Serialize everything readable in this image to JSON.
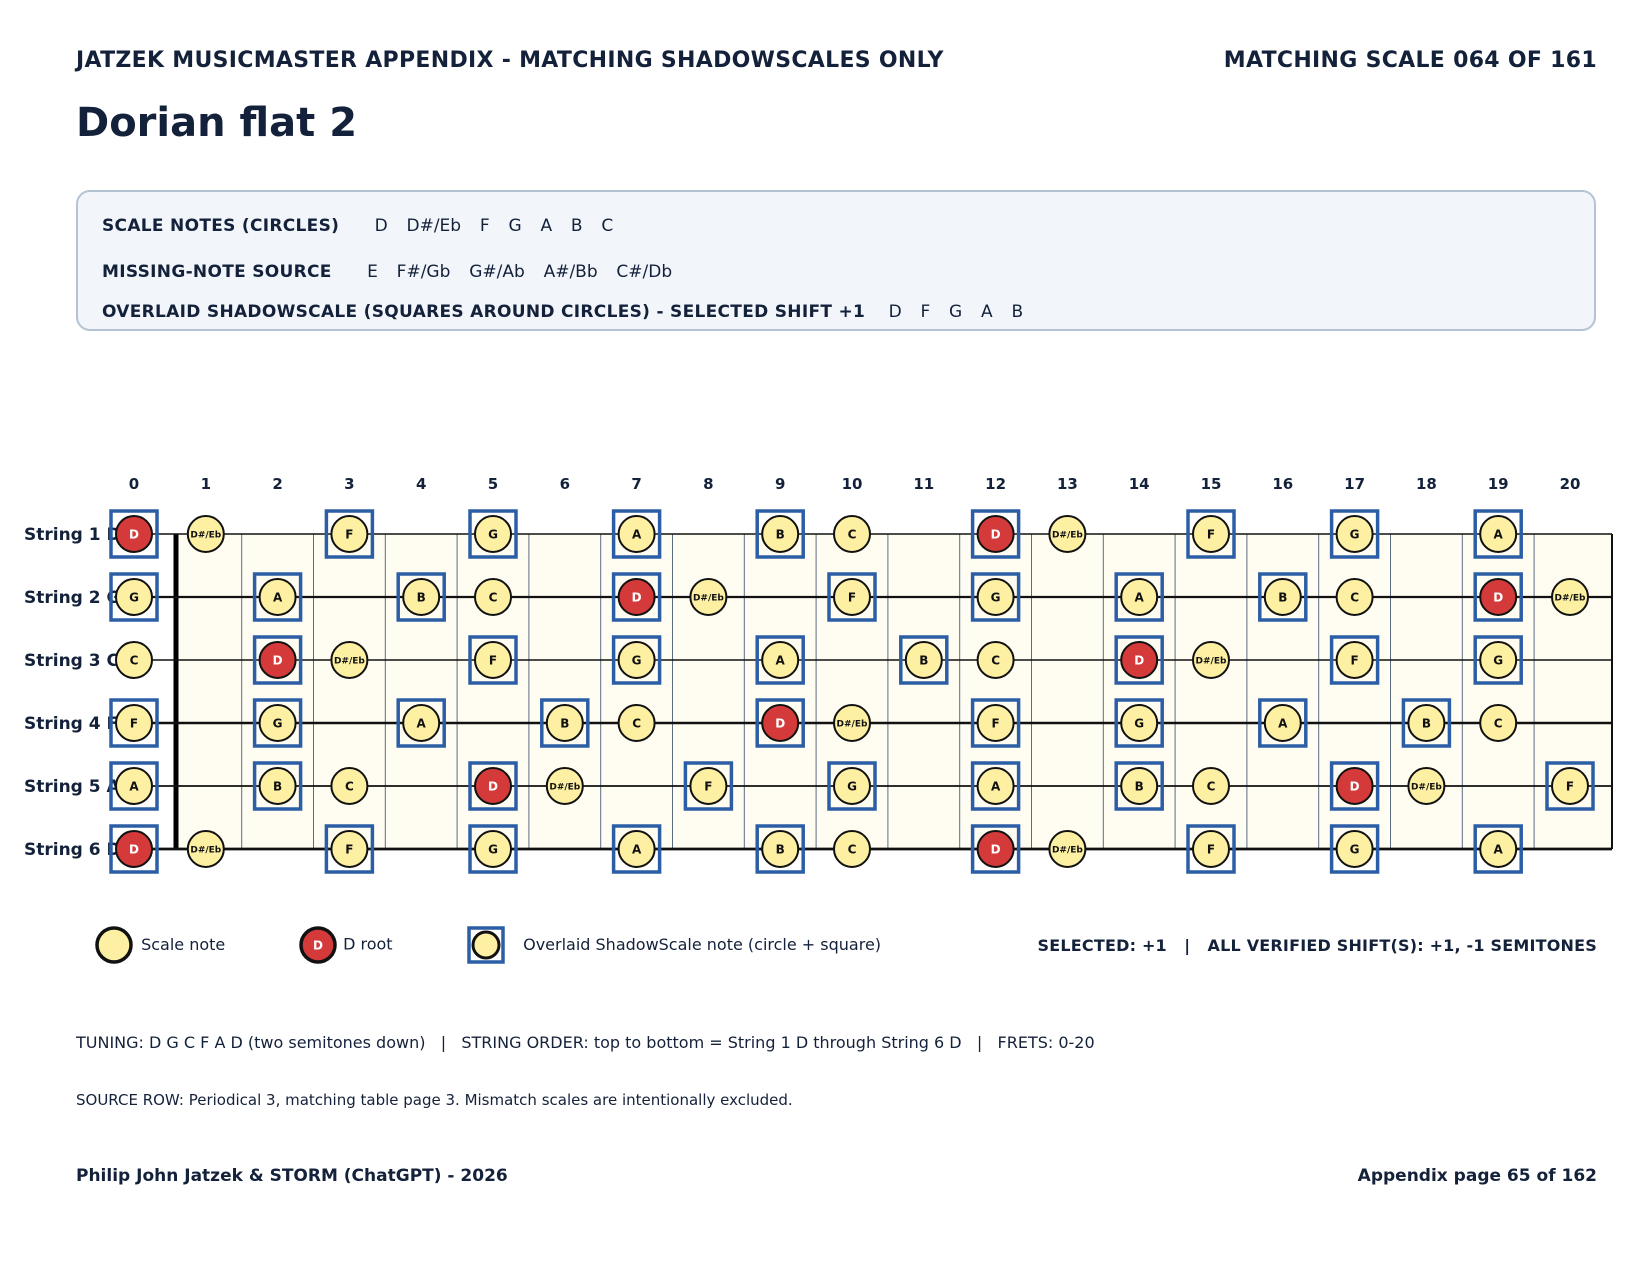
{
  "header": {
    "left": "JATZEK MUSICMASTER APPENDIX - MATCHING SHADOWSCALES ONLY",
    "right": "MATCHING SCALE 064 OF 161"
  },
  "title": "Dorian flat 2",
  "info": {
    "scale_notes_label": "SCALE NOTES (CIRCLES)",
    "scale_notes_value": "D  D#/Eb  F  G  A  B  C",
    "missing_label": "MISSING-NOTE SOURCE",
    "missing_value": "E  F#/Gb  G#/Ab  A#/Bb  C#/Db",
    "overlay_label": "OVERLAID SHADOWSCALE (SQUARES AROUND CIRCLES) - SELECTED SHIFT +1",
    "overlay_value": "D  F  G  A  B"
  },
  "fretboard": {
    "frets": [
      0,
      1,
      2,
      3,
      4,
      5,
      6,
      7,
      8,
      9,
      10,
      11,
      12,
      13,
      14,
      15,
      16,
      17,
      18,
      19,
      20
    ],
    "root": "D",
    "scale_notes": [
      "D",
      "D#/Eb",
      "F",
      "G",
      "A",
      "B",
      "C"
    ],
    "shadow_notes": [
      "D",
      "F",
      "G",
      "A",
      "B"
    ],
    "strings": [
      {
        "label": "String 1 D",
        "open": "D"
      },
      {
        "label": "String 2 G",
        "open": "G"
      },
      {
        "label": "String 3 C",
        "open": "C"
      },
      {
        "label": "String 4 F",
        "open": "F"
      },
      {
        "label": "String 5 A",
        "open": "A"
      },
      {
        "label": "String 6 D",
        "open": "D"
      }
    ],
    "chromatic": [
      "C",
      "C#/Db",
      "D",
      "D#/Eb",
      "E",
      "F",
      "F#/Gb",
      "G",
      "G#/Ab",
      "A",
      "A#/Bb",
      "B"
    ]
  },
  "legend": {
    "scale_note": "Scale note",
    "root_label": "D root",
    "root_circle_text": "D",
    "overlay": "Overlaid ShadowScale note (circle + square)",
    "right": "SELECTED: +1   |   ALL VERIFIED SHIFT(S): +1, -1 SEMITONES"
  },
  "notes": {
    "tuning": "TUNING: D G C F A D (two semitones down)   |   STRING ORDER: top to bottom = String 1 D through String 6 D   |   FRETS: 0-20",
    "source": "SOURCE ROW: Periodical 3, matching table page 3. Mismatch scales are intentionally excluded."
  },
  "footer": {
    "left": "Philip John Jatzek & STORM (ChatGPT) - 2026",
    "right": "Appendix page 65 of 162"
  },
  "colors": {
    "text": "#14213a",
    "note_fill": "#fdf0a3",
    "root_fill": "#d43a3a",
    "square": "#2c5ea6",
    "board_fill": "#fffdf2"
  }
}
